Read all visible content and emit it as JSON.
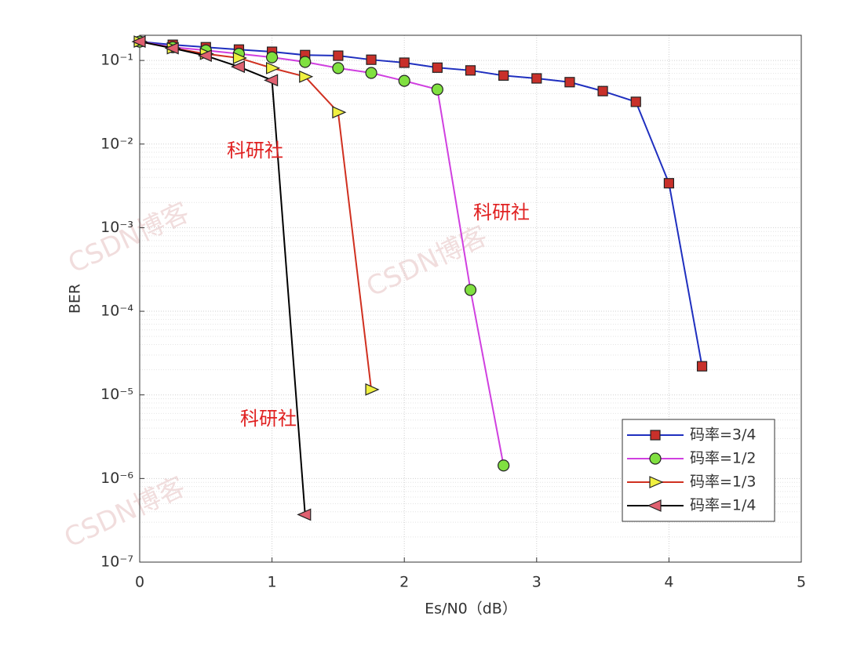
{
  "chart_data": {
    "type": "line",
    "xlabel": "Es/N0（dB）",
    "ylabel": "BER",
    "xlim": [
      0,
      5
    ],
    "xticks": [
      0,
      1,
      2,
      3,
      4,
      5
    ],
    "ylim": [
      1e-07,
      0.2
    ],
    "log_y": true,
    "grid": true,
    "minor_grid": true,
    "yticks": [
      {
        "value": 1e-07,
        "label": "10⁻⁷"
      },
      {
        "value": 1e-06,
        "label": "10⁻⁶"
      },
      {
        "value": 1e-05,
        "label": "10⁻⁵"
      },
      {
        "value": 0.0001,
        "label": "10⁻⁴"
      },
      {
        "value": 0.001,
        "label": "10⁻³"
      },
      {
        "value": 0.01,
        "label": "10⁻²"
      },
      {
        "value": 0.1,
        "label": "10⁻¹"
      }
    ],
    "legend": "lower right",
    "annotations": [
      "科研社",
      "科研社",
      "科研社"
    ],
    "watermarks": [
      "CSDN博客",
      "CSDN博客",
      "CSDN博客"
    ],
    "series": [
      {
        "name": "码率=3/4",
        "color": "#1f2fbf",
        "marker": "square",
        "marker_color": "#c8302a",
        "x": [
          0,
          0.25,
          0.5,
          0.75,
          1,
          1.25,
          1.5,
          1.75,
          2,
          2.25,
          2.5,
          2.75,
          3,
          3.25,
          3.5,
          3.75,
          4,
          4.25
        ],
        "values": [
          0.168,
          0.154,
          0.144,
          0.135,
          0.127,
          0.116,
          0.114,
          0.102,
          0.094,
          0.082,
          0.076,
          0.066,
          0.061,
          0.055,
          0.043,
          0.032,
          0.0034,
          2.2e-05
        ]
      },
      {
        "name": "码率=1/2",
        "color": "#d040e0",
        "marker": "circle",
        "marker_color": "#80e040",
        "x": [
          0,
          0.25,
          0.5,
          0.75,
          1,
          1.25,
          1.5,
          1.75,
          2,
          2.25,
          2.5,
          2.75
        ],
        "values": [
          0.168,
          0.144,
          0.132,
          0.12,
          0.109,
          0.096,
          0.081,
          0.071,
          0.057,
          0.045,
          0.00018,
          1.43e-06
        ]
      },
      {
        "name": "码率=1/3",
        "color": "#d03020",
        "marker": "triangle-right",
        "marker_color": "#f0f040",
        "x": [
          0,
          0.25,
          0.5,
          0.75,
          1,
          1.25,
          1.5,
          1.75
        ],
        "values": [
          0.168,
          0.14,
          0.12,
          0.107,
          0.081,
          0.064,
          0.024,
          1.16e-05
        ]
      },
      {
        "name": "码率=1/4",
        "color": "#000000",
        "marker": "triangle-left",
        "marker_color": "#e06070",
        "x": [
          0,
          0.25,
          0.5,
          0.75,
          1,
          1.25
        ],
        "values": [
          0.168,
          0.14,
          0.114,
          0.084,
          0.058,
          3.7e-07
        ]
      }
    ]
  }
}
